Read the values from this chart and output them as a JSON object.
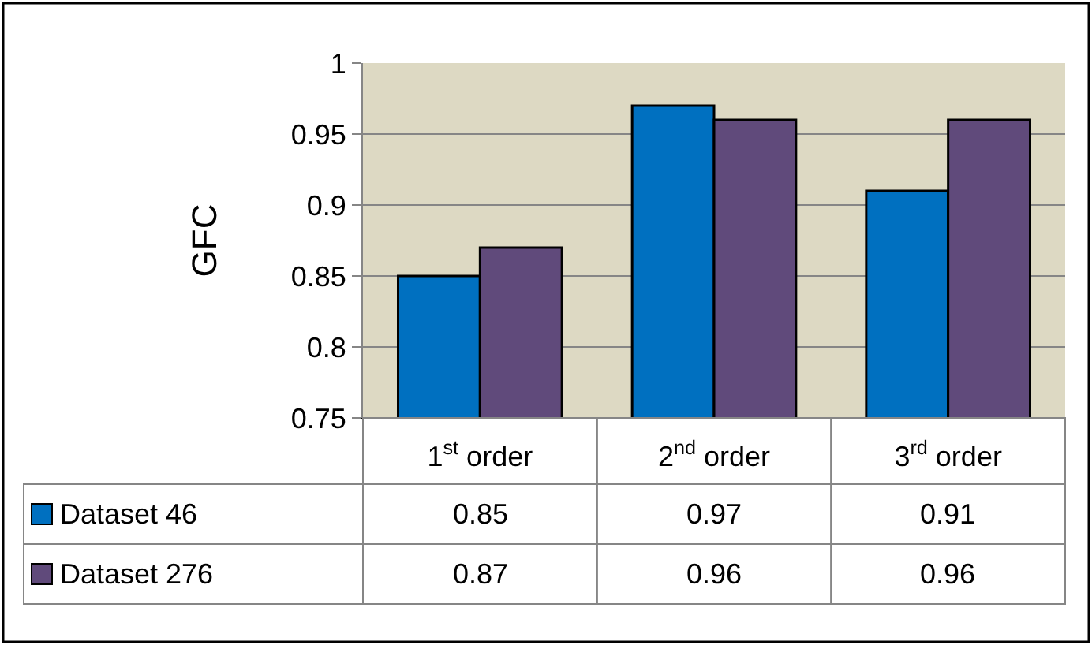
{
  "chart_data": {
    "type": "bar",
    "ylabel": "GFC",
    "categories": [
      "1$^{st}$ order",
      "2$^{nd}$ order",
      "3$^{rd}$ order"
    ],
    "series": [
      {
        "name": "Dataset 46",
        "color": "#0070c0",
        "values": [
          0.85,
          0.97,
          0.91
        ]
      },
      {
        "name": "Dataset 276",
        "color": "#604a7b",
        "values": [
          0.87,
          0.96,
          0.96
        ]
      }
    ],
    "ylim": [
      0.75,
      1
    ],
    "yticks": [
      0.75,
      0.8,
      0.85,
      0.9,
      0.95,
      1
    ],
    "grid": "y",
    "data_labels": true,
    "legend": "bottom left"
  }
}
